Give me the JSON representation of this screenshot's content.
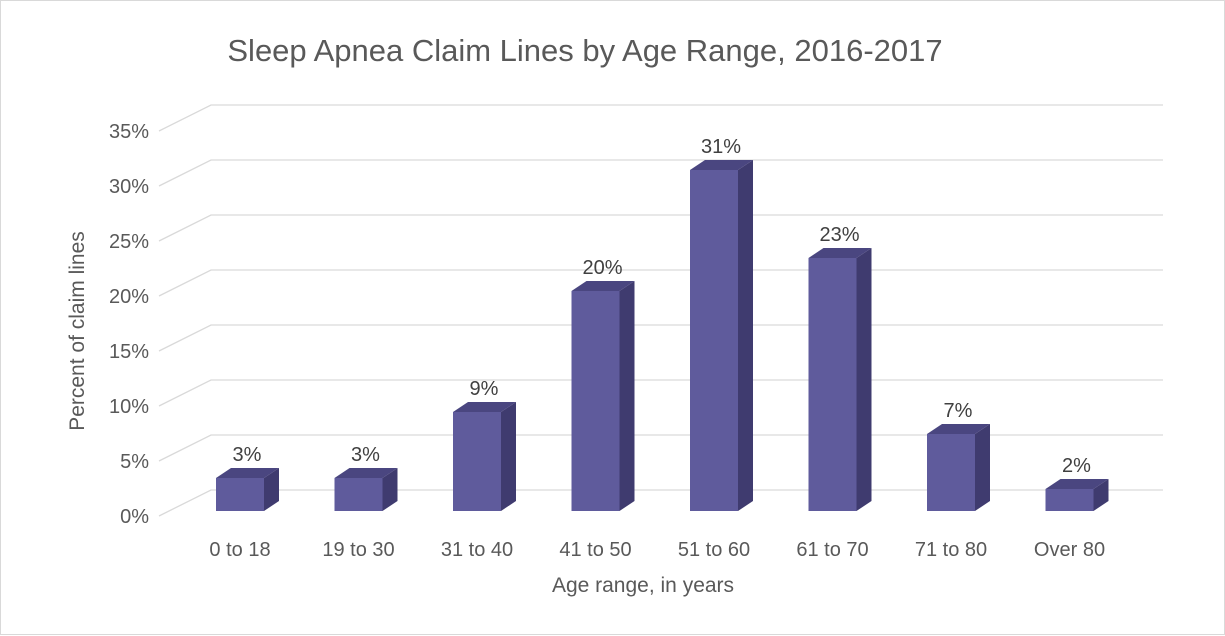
{
  "chart_data": {
    "type": "bar",
    "title": "Sleep Apnea Claim Lines by Age Range, 2016-2017",
    "xlabel": "Age range, in years",
    "ylabel": "Percent of claim lines",
    "categories": [
      "0 to 18",
      "19 to 30",
      "31 to 40",
      "41 to 50",
      "51 to 60",
      "61 to 70",
      "71 to 80",
      "Over 80"
    ],
    "values": [
      3,
      3,
      9,
      20,
      31,
      23,
      7,
      2
    ],
    "value_labels": [
      "3%",
      "3%",
      "9%",
      "20%",
      "31%",
      "23%",
      "7%",
      "2%"
    ],
    "ylim": [
      0,
      35
    ],
    "yticks": [
      0,
      5,
      10,
      15,
      20,
      25,
      30,
      35
    ],
    "ytick_labels": [
      "0%",
      "5%",
      "10%",
      "15%",
      "20%",
      "25%",
      "30%",
      "35%"
    ],
    "grid": true,
    "legend": "none",
    "style": "3d-column",
    "colors": {
      "bar_front": "#5f5b9c",
      "bar_side": "#3f3b6f",
      "bar_top": "#4a4680"
    }
  }
}
